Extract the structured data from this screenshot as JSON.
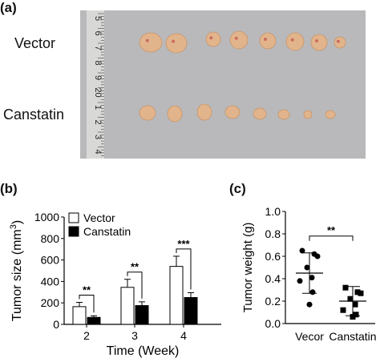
{
  "panels": {
    "a": {
      "label": "(a)",
      "row_labels": [
        "Vector",
        "Canstatin"
      ],
      "ruler_digits": [
        "5",
        "6",
        "7",
        "8",
        "9",
        "20",
        "1",
        "2",
        "3",
        "4"
      ]
    },
    "b": {
      "label": "(b)"
    },
    "c": {
      "label": "(c)"
    }
  },
  "colors": {
    "bar_vector": "#ffffff",
    "bar_canstatin": "#000000",
    "photo_bg": "#b9b9bb",
    "tumor": "#e2b48c"
  },
  "chart_data": [
    {
      "type": "bar",
      "panel": "b",
      "title": "",
      "xlabel": "Time (Week)",
      "ylabel": "Tumor size (mm",
      "ylabel_sup": "3",
      "ylabel_close": ")",
      "categories": [
        "2",
        "3",
        "4"
      ],
      "ylim": [
        0,
        1000
      ],
      "yticks": [
        "0",
        "200",
        "400",
        "600",
        "800",
        "1000"
      ],
      "legend": "top-left",
      "series": [
        {
          "name": "Vector",
          "values": [
            165,
            345,
            540
          ],
          "errors": [
            40,
            75,
            95
          ]
        },
        {
          "name": "Canstatin",
          "values": [
            65,
            175,
            250
          ],
          "errors": [
            15,
            35,
            45
          ]
        }
      ],
      "significance": [
        "**",
        "**",
        "***"
      ]
    },
    {
      "type": "scatter",
      "panel": "c",
      "title": "",
      "xlabel": "",
      "ylabel": "Tumor weight (g)",
      "categories": [
        "Vecor",
        "Canstatin"
      ],
      "ylim": [
        0,
        1.0
      ],
      "yticks": [
        "0.0",
        "0.2",
        "0.4",
        "0.6",
        "0.8",
        "1.0"
      ],
      "groups": [
        {
          "name": "Vecor",
          "values": [
            0.65,
            0.62,
            0.6,
            0.5,
            0.41,
            0.38,
            0.28,
            0.17
          ],
          "mean": 0.45,
          "sd": 0.18
        },
        {
          "name": "Canstatin",
          "values": [
            0.32,
            0.28,
            0.27,
            0.22,
            0.17,
            0.12,
            0.08,
            0.06
          ],
          "mean": 0.2,
          "sd": 0.13
        }
      ],
      "significance": "**"
    }
  ]
}
